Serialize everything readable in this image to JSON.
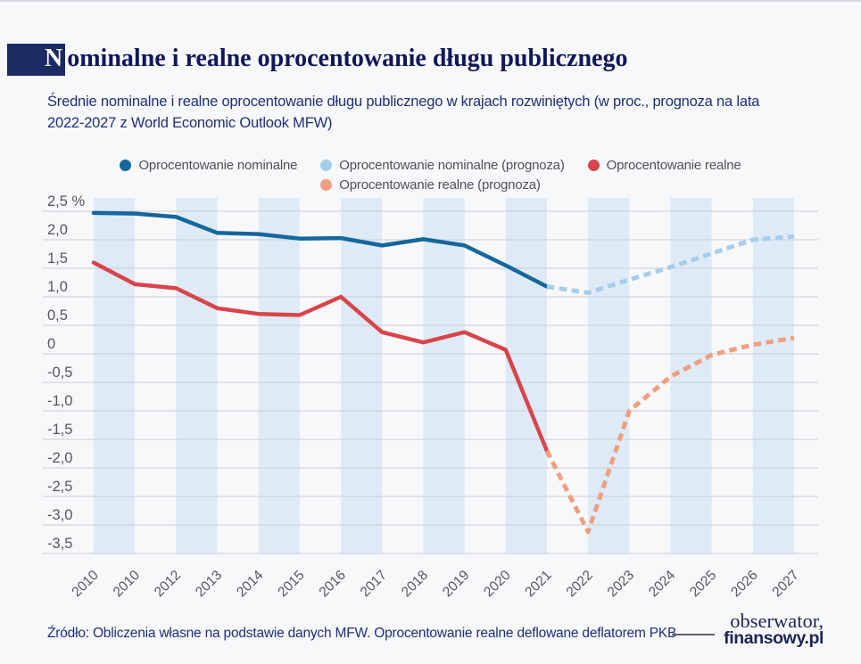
{
  "header": {
    "title_initial": "N",
    "title_rest": "ominalne i realne oprocentowanie długu publicznego"
  },
  "subtitle": {
    "lines": [
      "Średnie nominalne i realne oprocentowanie długu publicznego w krajach rozwiniętych (w proc., prognoza na lata",
      "2022-2027 z World Economic Outlook MFW)"
    ]
  },
  "legend": {
    "items": [
      {
        "label": "Oprocentowanie nominalne",
        "color": "#15679c"
      },
      {
        "label": "Oprocentowanie nominalne (prognoza)",
        "color": "#a6cde9"
      },
      {
        "label": "Oprocentowanie realne",
        "color": "#d8444b"
      },
      {
        "label": "Oprocentowanie realne (prognoza)",
        "color": "#ee9f80"
      }
    ]
  },
  "chart_data": {
    "type": "line",
    "title": "Nominalne i realne oprocentowanie długu publicznego",
    "xlabel": "",
    "ylabel": "",
    "ylim": [
      -3.5,
      2.5
    ],
    "grid": "horizontal",
    "background_bands": "alternating pairs of years, light blue",
    "legend_position": "top-center",
    "y_ticks": {
      "values": [
        2.5,
        2.0,
        1.5,
        1.0,
        0.5,
        0,
        -0.5,
        -1.0,
        -1.5,
        -2.0,
        -2.5,
        -3.0,
        -3.5
      ],
      "labels": [
        "2,5 %",
        "2,0",
        "1,5",
        "1,0",
        "0,5",
        "0",
        "-0,5",
        "-1,0",
        "-1,5",
        "-2,0",
        "-2,5",
        "-3,0",
        "-3,5"
      ]
    },
    "x_tick_labels": [
      "2010",
      "2010",
      "2012",
      "2013",
      "2014",
      "2015",
      "2016",
      "2017",
      "2018",
      "2019",
      "2020",
      "2021",
      "2022",
      "2023",
      "2024",
      "2025",
      "2026",
      "2027"
    ],
    "series": [
      {
        "name": "Oprocentowanie nominalne",
        "color": "#15679c",
        "dash": false,
        "start_index": 0,
        "values": [
          2.47,
          2.46,
          2.4,
          2.12,
          2.1,
          2.02,
          2.03,
          1.9,
          2.01,
          1.9,
          1.55,
          1.18
        ]
      },
      {
        "name": "Oprocentowanie nominalne (prognoza)",
        "color": "#a6cde9",
        "dash": true,
        "start_index": 11,
        "values": [
          1.18,
          1.07,
          1.3,
          1.52,
          1.76,
          2.0,
          2.06
        ]
      },
      {
        "name": "Oprocentowanie realne",
        "color": "#d8444b",
        "dash": false,
        "start_index": 0,
        "values": [
          1.6,
          1.22,
          1.15,
          0.8,
          0.7,
          0.68,
          1.0,
          0.38,
          0.2,
          0.38,
          0.07,
          -1.7
        ]
      },
      {
        "name": "Oprocentowanie realne (prognoza)",
        "color": "#ee9f80",
        "dash": true,
        "start_index": 11,
        "values": [
          -1.7,
          -3.12,
          -1.0,
          -0.4,
          -0.02,
          0.16,
          0.28
        ]
      }
    ]
  },
  "footer": {
    "source": "Źródło: Obliczenia własne na podstawie danych MFW. Oprocentowanie realne deflowane deflatorem PKB",
    "logo": {
      "line1": "obserwator,",
      "line2": "finansowy.pl"
    }
  }
}
